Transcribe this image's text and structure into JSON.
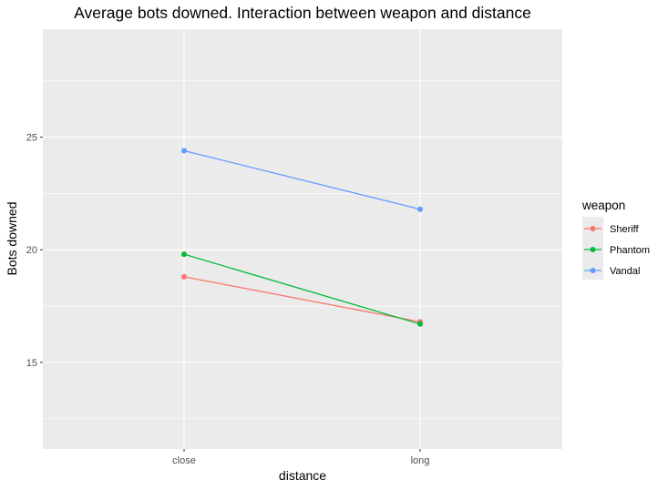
{
  "chart_data": {
    "type": "line",
    "title": "Average bots downed. Interaction between weapon and distance",
    "xlabel": "distance",
    "ylabel": "Bots downed",
    "categories": [
      "close",
      "long"
    ],
    "series": [
      {
        "name": "Sheriff",
        "color": "#F8766D",
        "values": [
          18.8,
          16.8
        ]
      },
      {
        "name": "Phantom",
        "color": "#00BA38",
        "values": [
          19.8,
          16.7
        ]
      },
      {
        "name": "Vandal",
        "color": "#619CFF",
        "values": [
          24.4,
          21.8
        ]
      }
    ],
    "ylim": [
      11.15,
      29.8
    ],
    "yticks": [
      15,
      20,
      25
    ],
    "ytick_labels": [
      "15",
      "20",
      "25"
    ],
    "y_minor_grid": [
      12.5,
      17.5,
      22.5,
      27.5
    ],
    "grid": true,
    "legend": {
      "title": "weapon",
      "position": "right",
      "entries": [
        "Sheriff",
        "Phantom",
        "Vandal"
      ]
    },
    "panel_background": "#EBEBEB",
    "grid_color": "#FFFFFF"
  }
}
